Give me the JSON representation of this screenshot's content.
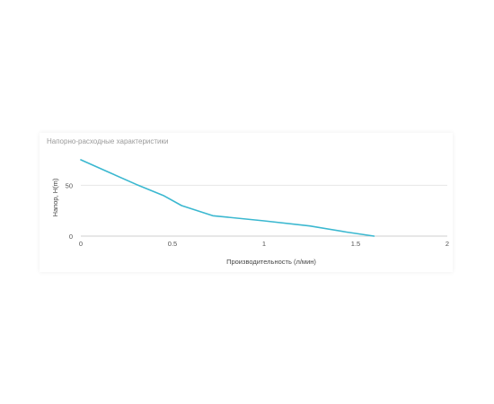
{
  "chart_data": {
    "type": "line",
    "title": "Напорно-расходные характеристики",
    "xlabel": "Производительность (л/мин)",
    "ylabel": "Напор, H(m)",
    "xlim": [
      0,
      2
    ],
    "ylim": [
      0,
      75
    ],
    "xticks": [
      "0",
      "0.5",
      "1",
      "1.5",
      "2"
    ],
    "xtick_values": [
      0,
      0.5,
      1,
      1.5,
      2
    ],
    "yticks": [
      "0",
      "50"
    ],
    "ytick_values": [
      0,
      50
    ],
    "grid": true,
    "line_color": "#3bb8d0",
    "series": [
      {
        "x": [
          0,
          0.15,
          0.3,
          0.45,
          0.55,
          0.72,
          1.0,
          1.25,
          1.45,
          1.6
        ],
        "y": [
          75,
          63,
          51,
          40,
          30,
          20,
          15,
          10,
          4,
          0
        ]
      }
    ]
  }
}
